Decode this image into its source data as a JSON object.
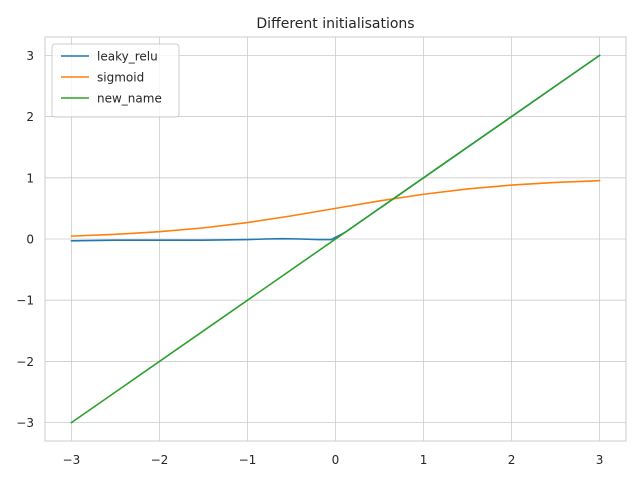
{
  "chart_data": {
    "type": "line",
    "title": "Different initialisations",
    "xlabel": "",
    "ylabel": "",
    "xlim": [
      -3.3,
      3.3
    ],
    "ylim": [
      -3.3,
      3.3
    ],
    "xticks": [
      -3,
      -2,
      -1,
      0,
      1,
      2,
      3
    ],
    "yticks": [
      -3,
      -2,
      -1,
      0,
      1,
      2,
      3
    ],
    "xtick_labels": [
      "−3",
      "−2",
      "−1",
      "0",
      "1",
      "2",
      "3"
    ],
    "ytick_labels": [
      "−3",
      "−2",
      "−1",
      "0",
      "1",
      "2",
      "3"
    ],
    "grid": true,
    "legend_position": "top-left",
    "series": [
      {
        "name": "leaky_relu",
        "color": "#1f77b4",
        "x": [
          -3,
          -2.5,
          -2,
          -1.5,
          -1,
          -0.8,
          -0.6,
          -0.4,
          -0.2,
          -0.05,
          0.1,
          0.5,
          1,
          2,
          3
        ],
        "y": [
          -0.03,
          -0.02,
          -0.02,
          -0.02,
          -0.01,
          0.0,
          0.005,
          0.0,
          -0.01,
          -0.01,
          0.1,
          0.5,
          1,
          2,
          3
        ]
      },
      {
        "name": "sigmoid",
        "color": "#ff7f0e",
        "x": [
          -3,
          -2.5,
          -2,
          -1.5,
          -1,
          -0.5,
          0,
          0.5,
          1,
          1.5,
          2,
          2.5,
          3
        ],
        "y": [
          0.047,
          0.076,
          0.119,
          0.182,
          0.269,
          0.378,
          0.5,
          0.622,
          0.731,
          0.818,
          0.881,
          0.924,
          0.953
        ]
      },
      {
        "name": "new_name",
        "color": "#2ca02c",
        "x": [
          -3,
          3
        ],
        "y": [
          -3,
          3
        ]
      }
    ]
  }
}
